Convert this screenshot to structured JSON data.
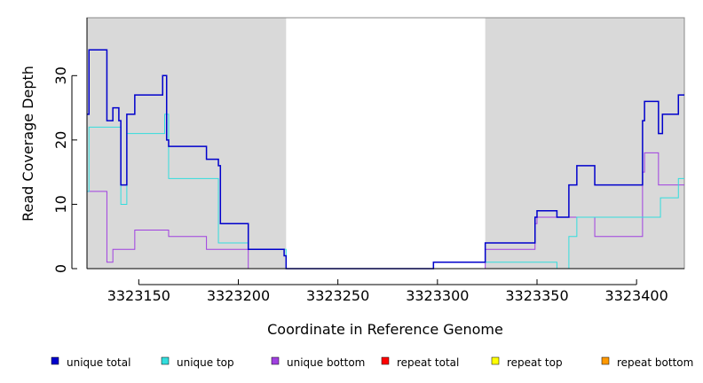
{
  "chart_data": {
    "type": "line",
    "title": "",
    "xlabel": "Coordinate in Reference Genome",
    "ylabel": "Read Coverage Depth",
    "xlim": [
      3323124,
      3323424
    ],
    "ylim": [
      0,
      39
    ],
    "x_ticks": [
      3323150,
      3323200,
      3323250,
      3323300,
      3323350,
      3323400
    ],
    "y_ticks": [
      0,
      10,
      20,
      30
    ],
    "grid": false,
    "legend_position": "bottom",
    "shaded_regions": [
      {
        "x_start": 3323124,
        "x_end": 3323224,
        "color": "#d9d9d9"
      },
      {
        "x_start": 3323324,
        "x_end": 3323424,
        "color": "#d9d9d9"
      }
    ],
    "series": [
      {
        "name": "unique total",
        "color": "#0000cc",
        "points": [
          [
            3323124,
            24
          ],
          [
            3323125,
            34
          ],
          [
            3323134,
            23
          ],
          [
            3323137,
            25
          ],
          [
            3323140,
            23
          ],
          [
            3323141,
            13
          ],
          [
            3323144,
            24
          ],
          [
            3323148,
            27
          ],
          [
            3323162,
            30
          ],
          [
            3323164,
            20
          ],
          [
            3323165,
            19
          ],
          [
            3323184,
            17
          ],
          [
            3323190,
            16
          ],
          [
            3323191,
            7
          ],
          [
            3323205,
            3
          ],
          [
            3323223,
            2
          ],
          [
            3323224,
            0
          ],
          [
            3323298,
            1
          ],
          [
            3323324,
            4
          ],
          [
            3323349,
            8
          ],
          [
            3323350,
            9
          ],
          [
            3323360,
            8
          ],
          [
            3323366,
            13
          ],
          [
            3323370,
            16
          ],
          [
            3323379,
            13
          ],
          [
            3323403,
            23
          ],
          [
            3323404,
            26
          ],
          [
            3323411,
            21
          ],
          [
            3323413,
            24
          ],
          [
            3323421,
            27
          ],
          [
            3323424,
            27
          ]
        ]
      },
      {
        "name": "unique top",
        "color": "#33dddd",
        "points": [
          [
            3323124,
            12
          ],
          [
            3323125,
            22
          ],
          [
            3323141,
            10
          ],
          [
            3323144,
            21
          ],
          [
            3323163,
            24
          ],
          [
            3323165,
            14
          ],
          [
            3323190,
            4
          ],
          [
            3323205,
            3
          ],
          [
            3323224,
            0
          ],
          [
            3323298,
            1
          ],
          [
            3323324,
            1
          ],
          [
            3323360,
            0
          ],
          [
            3323366,
            5
          ],
          [
            3323370,
            8
          ],
          [
            3323403,
            8
          ],
          [
            3323404,
            8
          ],
          [
            3323412,
            11
          ],
          [
            3323421,
            14
          ],
          [
            3323424,
            14
          ]
        ]
      },
      {
        "name": "unique bottom",
        "color": "#a040e0",
        "points": [
          [
            3323124,
            12
          ],
          [
            3323134,
            1
          ],
          [
            3323137,
            3
          ],
          [
            3323148,
            6
          ],
          [
            3323165,
            5
          ],
          [
            3323184,
            3
          ],
          [
            3323205,
            0
          ],
          [
            3323324,
            3
          ],
          [
            3323349,
            7
          ],
          [
            3323350,
            8
          ],
          [
            3323379,
            5
          ],
          [
            3323403,
            15
          ],
          [
            3323404,
            18
          ],
          [
            3323411,
            13
          ],
          [
            3323421,
            13
          ],
          [
            3323424,
            13
          ]
        ]
      },
      {
        "name": "repeat total",
        "color": "#ff0000",
        "points": [
          [
            3323124,
            0
          ],
          [
            3323424,
            0
          ]
        ]
      },
      {
        "name": "repeat top",
        "color": "#ffff00",
        "points": [
          [
            3323124,
            0
          ],
          [
            3323424,
            0
          ]
        ]
      },
      {
        "name": "repeat bottom",
        "color": "#ff9900",
        "points": [
          [
            3323124,
            0
          ],
          [
            3323424,
            0
          ]
        ]
      }
    ]
  }
}
